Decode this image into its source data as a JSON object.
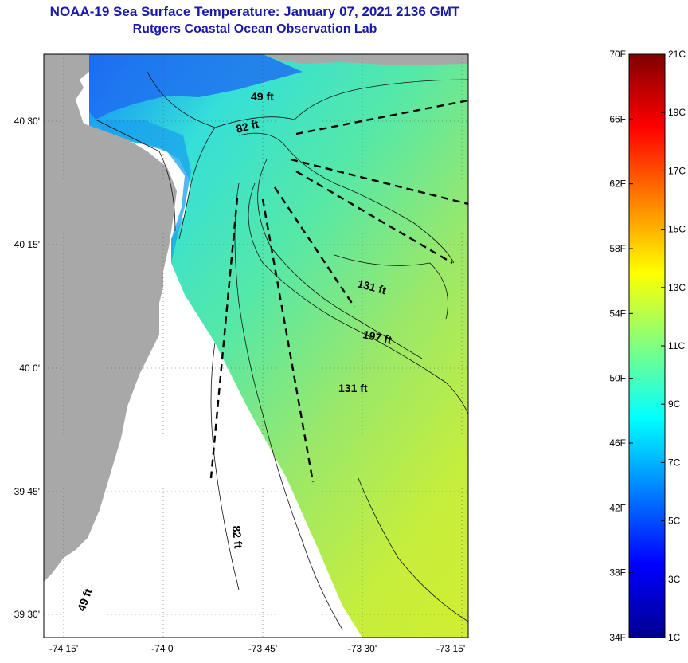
{
  "header": {
    "title": "NOAA-19 Sea Surface Temperature:  January 07, 2021 2136 GMT",
    "subtitle": "Rutgers Coastal Ocean Observation Lab"
  },
  "map": {
    "lat_ticks": [
      {
        "value": 40.5,
        "label": "40 30'"
      },
      {
        "value": 40.25,
        "label": "40 15'"
      },
      {
        "value": 40.0,
        "label": "40 0'"
      },
      {
        "value": 39.75,
        "label": "39 45'"
      },
      {
        "value": 39.5,
        "label": "39 30'"
      }
    ],
    "lon_ticks": [
      {
        "value": -74.25,
        "label": "-74 15'"
      },
      {
        "value": -74.0,
        "label": "-74 0'"
      },
      {
        "value": -73.75,
        "label": "-73 45'"
      },
      {
        "value": -73.5,
        "label": "-73 30'"
      },
      {
        "value": -73.25,
        "label": "-73 15'"
      }
    ],
    "depth_labels": [
      "49 ft",
      "82 ft",
      "131 ft",
      "197 ft",
      "131 ft",
      "82 ft",
      "49 ft"
    ],
    "colors": {
      "land": "#a8a8a8",
      "no_data": "#ffffff",
      "cold_coast": "#1e5cf0",
      "mid_water": "#3fe0c8",
      "warm_offshore": "#c8ee3a"
    }
  },
  "colorbar": {
    "f_labels": [
      "70F",
      "66F",
      "62F",
      "58F",
      "54F",
      "50F",
      "46F",
      "42F",
      "38F",
      "34F"
    ],
    "c_labels": [
      "21C",
      "19C",
      "17C",
      "15C",
      "13C",
      "11C",
      "9C",
      "7C",
      "5C",
      "3C",
      "1C"
    ]
  }
}
